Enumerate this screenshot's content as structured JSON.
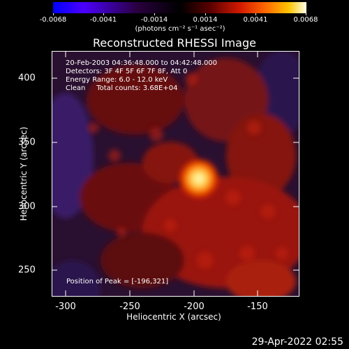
{
  "colorbar": {
    "ticks": [
      "-0.0068",
      "-0.0041",
      "-0.0014",
      "0.0014",
      "0.0041",
      "0.0068"
    ],
    "units": "(photons cm⁻² s⁻¹ asec⁻²)"
  },
  "plot": {
    "title": "Reconstructed RHESSI Image",
    "info_lines": [
      "20-Feb-2003 04:36:48.000 to 04:42:48.000",
      "Detectors: 3F 4F 5F 6F 7F 8F, Att 0",
      "Energy Range: 6.0 - 12.0 keV",
      "Clean     Total counts: 3.68E+04"
    ],
    "peak_label": "Position of Peak = [-196,321]",
    "x_axis": {
      "label": "Heliocentric X (arcsec)",
      "ticks": [
        "-300",
        "-250",
        "-200",
        "-150"
      ]
    },
    "y_axis": {
      "label": "Heliocentric Y (arcsec)",
      "ticks": [
        "400",
        "350",
        "300",
        "250"
      ]
    }
  },
  "footer": {
    "datestamp": "29-Apr-2022 02:55"
  },
  "colors": {
    "background": "#000000",
    "flare_core": "#fff4b0",
    "emission": "#c01a00",
    "negative": "#3a1a6a"
  }
}
